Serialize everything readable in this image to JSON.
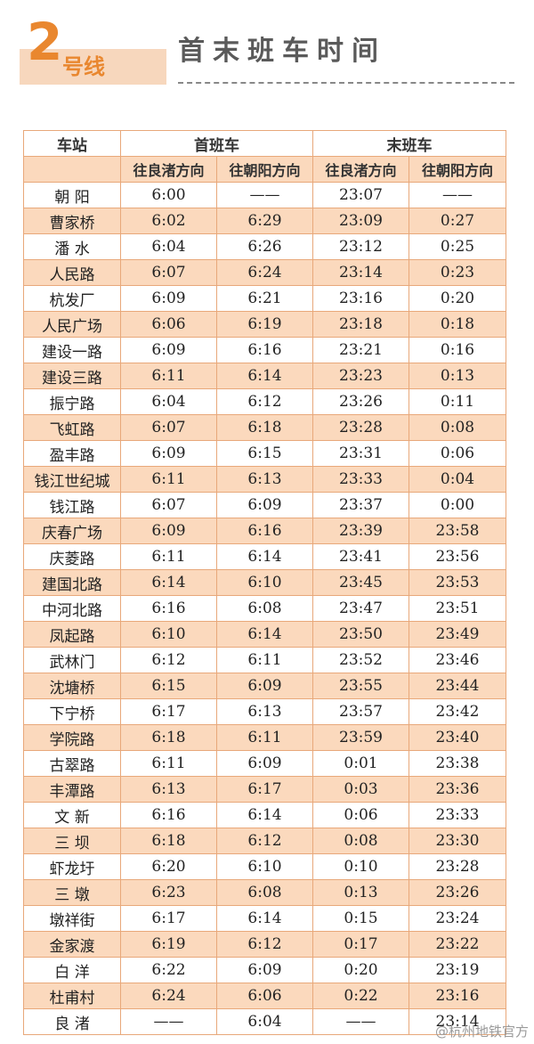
{
  "header": {
    "line_number": "2",
    "line_word": "号线",
    "title": "首末班车时间"
  },
  "table": {
    "station_header": "车站",
    "first_train_header": "首班车",
    "last_train_header": "末班车",
    "direction_1": "往良渚方向",
    "direction_2": "往朝阳方向",
    "direction_3": "往良渚方向",
    "direction_4": "往朝阳方向",
    "rows": [
      {
        "station": "朝 阳",
        "first_liangzhu": "6:00",
        "first_chaoyang": "——",
        "last_liangzhu": "23:07",
        "last_chaoyang": "——"
      },
      {
        "station": "曹家桥",
        "first_liangzhu": "6:02",
        "first_chaoyang": "6:29",
        "last_liangzhu": "23:09",
        "last_chaoyang": "0:27"
      },
      {
        "station": "潘 水",
        "first_liangzhu": "6:04",
        "first_chaoyang": "6:26",
        "last_liangzhu": "23:12",
        "last_chaoyang": "0:25"
      },
      {
        "station": "人民路",
        "first_liangzhu": "6:07",
        "first_chaoyang": "6:24",
        "last_liangzhu": "23:14",
        "last_chaoyang": "0:23"
      },
      {
        "station": "杭发厂",
        "first_liangzhu": "6:09",
        "first_chaoyang": "6:21",
        "last_liangzhu": "23:16",
        "last_chaoyang": "0:20"
      },
      {
        "station": "人民广场",
        "first_liangzhu": "6:06",
        "first_chaoyang": "6:19",
        "last_liangzhu": "23:18",
        "last_chaoyang": "0:18"
      },
      {
        "station": "建设一路",
        "first_liangzhu": "6:09",
        "first_chaoyang": "6:16",
        "last_liangzhu": "23:21",
        "last_chaoyang": "0:16"
      },
      {
        "station": "建设三路",
        "first_liangzhu": "6:11",
        "first_chaoyang": "6:14",
        "last_liangzhu": "23:23",
        "last_chaoyang": "0:13"
      },
      {
        "station": "振宁路",
        "first_liangzhu": "6:04",
        "first_chaoyang": "6:12",
        "last_liangzhu": "23:26",
        "last_chaoyang": "0:11"
      },
      {
        "station": "飞虹路",
        "first_liangzhu": "6:07",
        "first_chaoyang": "6:18",
        "last_liangzhu": "23:28",
        "last_chaoyang": "0:08"
      },
      {
        "station": "盈丰路",
        "first_liangzhu": "6:09",
        "first_chaoyang": "6:15",
        "last_liangzhu": "23:31",
        "last_chaoyang": "0:06"
      },
      {
        "station": "钱江世纪城",
        "first_liangzhu": "6:11",
        "first_chaoyang": "6:13",
        "last_liangzhu": "23:33",
        "last_chaoyang": "0:04"
      },
      {
        "station": "钱江路",
        "first_liangzhu": "6:07",
        "first_chaoyang": "6:09",
        "last_liangzhu": "23:37",
        "last_chaoyang": "0:00"
      },
      {
        "station": "庆春广场",
        "first_liangzhu": "6:09",
        "first_chaoyang": "6:16",
        "last_liangzhu": "23:39",
        "last_chaoyang": "23:58"
      },
      {
        "station": "庆菱路",
        "first_liangzhu": "6:11",
        "first_chaoyang": "6:14",
        "last_liangzhu": "23:41",
        "last_chaoyang": "23:56"
      },
      {
        "station": "建国北路",
        "first_liangzhu": "6:14",
        "first_chaoyang": "6:10",
        "last_liangzhu": "23:45",
        "last_chaoyang": "23:53"
      },
      {
        "station": "中河北路",
        "first_liangzhu": "6:16",
        "first_chaoyang": "6:08",
        "last_liangzhu": "23:47",
        "last_chaoyang": "23:51"
      },
      {
        "station": "凤起路",
        "first_liangzhu": "6:10",
        "first_chaoyang": "6:14",
        "last_liangzhu": "23:50",
        "last_chaoyang": "23:49"
      },
      {
        "station": "武林门",
        "first_liangzhu": "6:12",
        "first_chaoyang": "6:11",
        "last_liangzhu": "23:52",
        "last_chaoyang": "23:46"
      },
      {
        "station": "沈塘桥",
        "first_liangzhu": "6:15",
        "first_chaoyang": "6:09",
        "last_liangzhu": "23:55",
        "last_chaoyang": "23:44"
      },
      {
        "station": "下宁桥",
        "first_liangzhu": "6:17",
        "first_chaoyang": "6:13",
        "last_liangzhu": "23:57",
        "last_chaoyang": "23:42"
      },
      {
        "station": "学院路",
        "first_liangzhu": "6:18",
        "first_chaoyang": "6:11",
        "last_liangzhu": "23:59",
        "last_chaoyang": "23:40"
      },
      {
        "station": "古翠路",
        "first_liangzhu": "6:11",
        "first_chaoyang": "6:09",
        "last_liangzhu": "0:01",
        "last_chaoyang": "23:38"
      },
      {
        "station": "丰潭路",
        "first_liangzhu": "6:13",
        "first_chaoyang": "6:17",
        "last_liangzhu": "0:03",
        "last_chaoyang": "23:36"
      },
      {
        "station": "文 新",
        "first_liangzhu": "6:16",
        "first_chaoyang": "6:14",
        "last_liangzhu": "0:06",
        "last_chaoyang": "23:33"
      },
      {
        "station": "三 坝",
        "first_liangzhu": "6:18",
        "first_chaoyang": "6:12",
        "last_liangzhu": "0:08",
        "last_chaoyang": "23:30"
      },
      {
        "station": "虾龙圩",
        "first_liangzhu": "6:20",
        "first_chaoyang": "6:10",
        "last_liangzhu": "0:10",
        "last_chaoyang": "23:28"
      },
      {
        "station": "三 墩",
        "first_liangzhu": "6:23",
        "first_chaoyang": "6:08",
        "last_liangzhu": "0:13",
        "last_chaoyang": "23:26"
      },
      {
        "station": "墩祥街",
        "first_liangzhu": "6:17",
        "first_chaoyang": "6:14",
        "last_liangzhu": "0:15",
        "last_chaoyang": "23:24"
      },
      {
        "station": "金家渡",
        "first_liangzhu": "6:19",
        "first_chaoyang": "6:12",
        "last_liangzhu": "0:17",
        "last_chaoyang": "23:22"
      },
      {
        "station": "白 洋",
        "first_liangzhu": "6:22",
        "first_chaoyang": "6:09",
        "last_liangzhu": "0:20",
        "last_chaoyang": "23:19"
      },
      {
        "station": "杜甫村",
        "first_liangzhu": "6:24",
        "first_chaoyang": "6:06",
        "last_liangzhu": "0:22",
        "last_chaoyang": "23:16"
      },
      {
        "station": "良 渚",
        "first_liangzhu": "——",
        "first_chaoyang": "6:04",
        "last_liangzhu": "——",
        "last_chaoyang": "23:14"
      }
    ]
  },
  "watermark": "@杭州地铁官方",
  "colors": {
    "accent": "#e9872f",
    "row_shade": "#fbd9bd",
    "border": "#e8a87a",
    "title_text": "#5a5a5a"
  }
}
